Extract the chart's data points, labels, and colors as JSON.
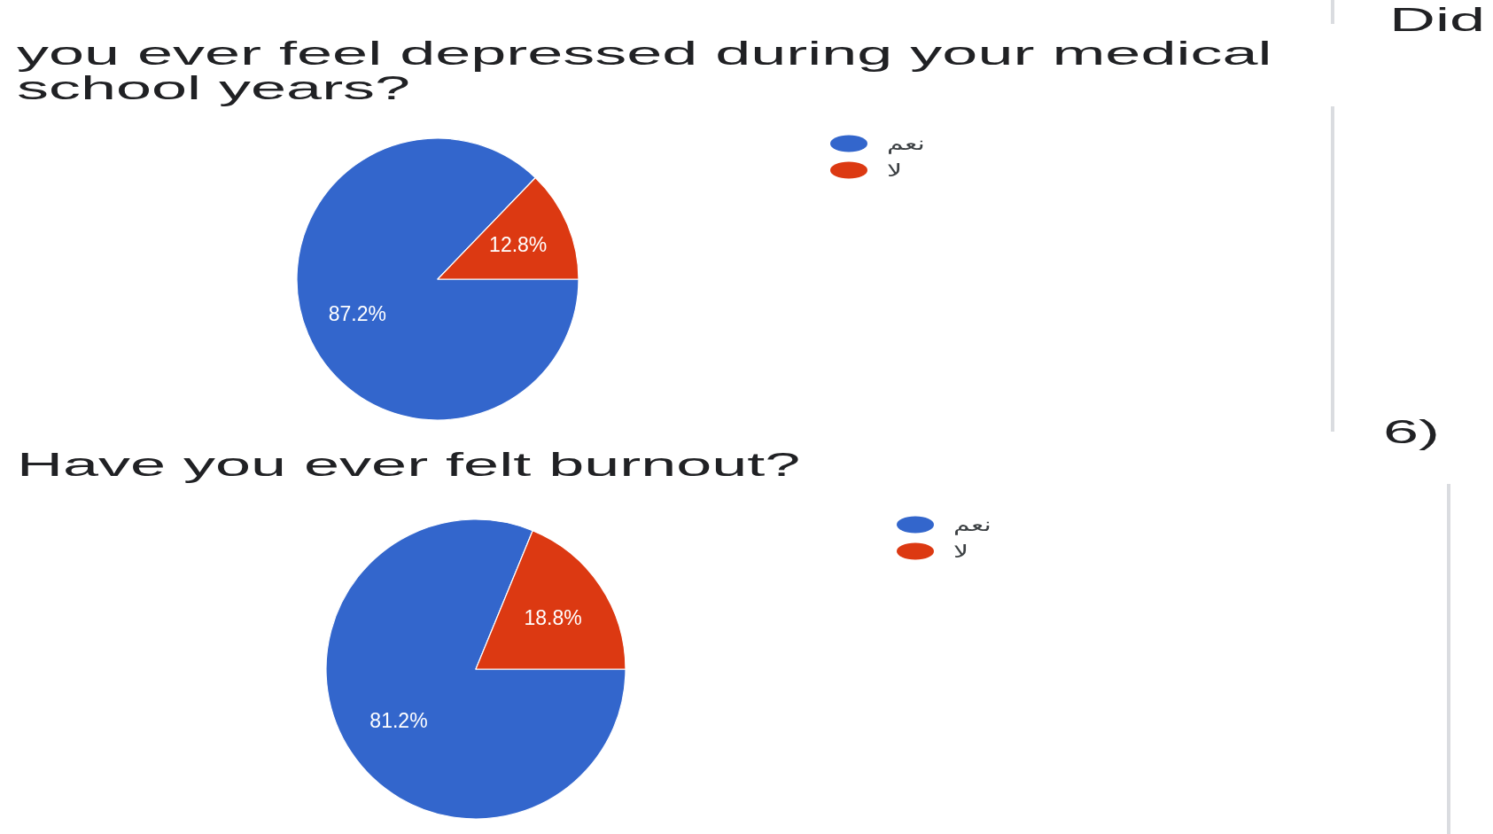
{
  "chart_data": [
    {
      "type": "pie",
      "title": "you ever feel depressed during your medical school years?",
      "annotations": [
        "Did"
      ],
      "categories": [
        "نعم",
        "لا"
      ],
      "values": [
        87.2,
        12.8
      ],
      "colors": [
        "#3366cc",
        "#dc3912"
      ],
      "value_labels": [
        "87.2%",
        "12.8%"
      ],
      "legend": "top right"
    },
    {
      "type": "pie",
      "title": "Have you ever felt burnout?",
      "annotations": [
        "6)"
      ],
      "categories": [
        "نعم",
        "لا"
      ],
      "values": [
        81.2,
        18.8
      ],
      "colors": [
        "#3366cc",
        "#dc3912"
      ],
      "value_labels": [
        "81.2%",
        "18.8%"
      ],
      "legend": "top right"
    }
  ]
}
